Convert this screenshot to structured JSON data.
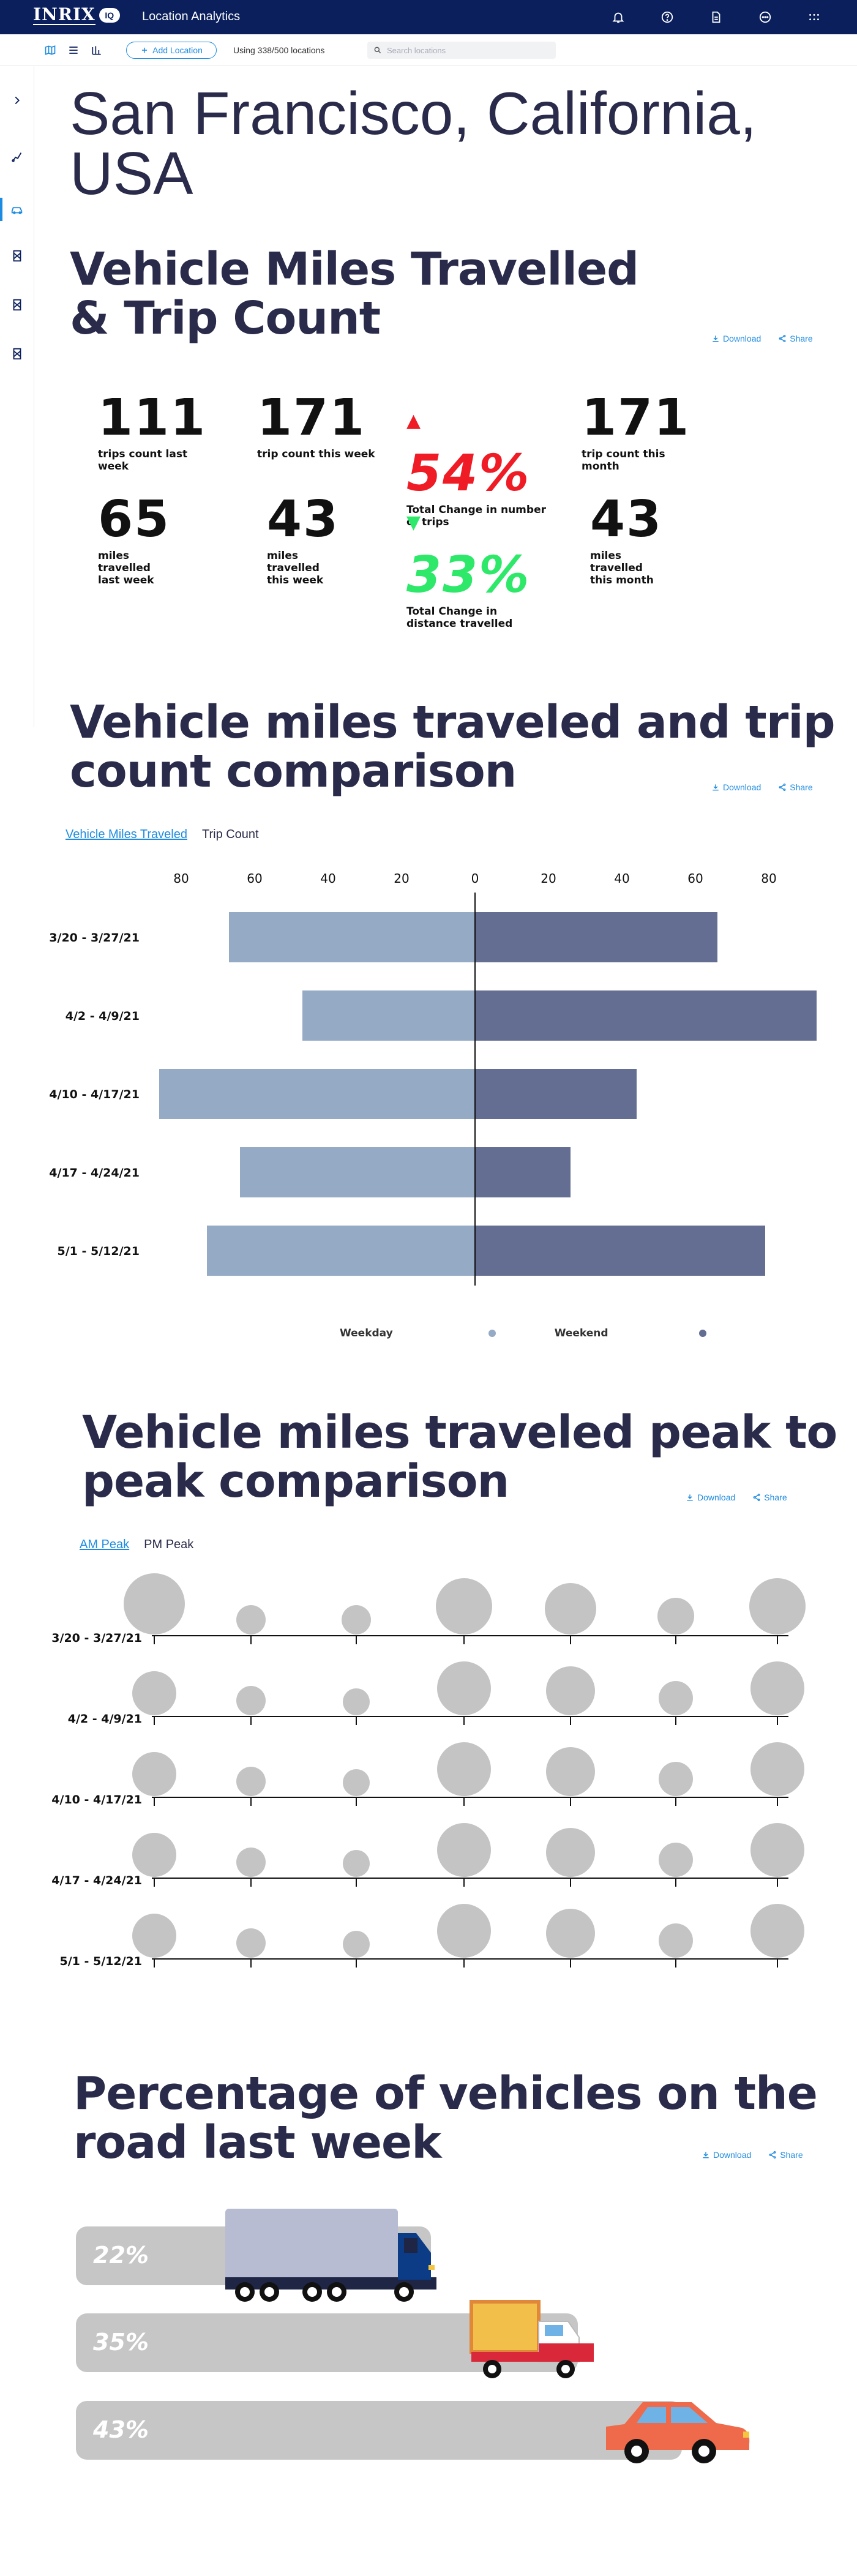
{
  "app": {
    "logo_text": "INRIX",
    "logo_badge": "IQ",
    "title": "Location Analytics"
  },
  "header_icons": [
    "bell-icon",
    "help-icon",
    "document-icon",
    "more-circle-icon",
    "apps-grid-icon"
  ],
  "toolbar": {
    "add_location_label": "Add Location",
    "usage_text": "Using 338/500 locations",
    "search_placeholder": "Search locations"
  },
  "page": {
    "title": "San Francisco, California, USA"
  },
  "actions": {
    "download_label": "Download",
    "share_label": "Share"
  },
  "vmt_section": {
    "title_line1": "Vehicle Miles Travelled",
    "title_line2": "& Trip Count",
    "metrics": [
      {
        "value": "111",
        "label": "trips count last week"
      },
      {
        "value": "171",
        "label": "trip count this week"
      },
      {
        "value": "54%",
        "label": "Total Change in number of trips",
        "trend": "up"
      },
      {
        "value": "171",
        "label": "trip count this month"
      },
      {
        "value": "65",
        "label": "miles travelled last week"
      },
      {
        "value": "43",
        "label": "miles travelled this week"
      },
      {
        "value": "33%",
        "label": "Total Change in distance travelled",
        "trend": "down"
      },
      {
        "value": "43",
        "label": "miles travelled this month"
      }
    ]
  },
  "comparison_section": {
    "title_line1": "Vehicle miles traveled and trip",
    "title_line2": "count comparison",
    "tabs": [
      "Vehicle Miles Traveled",
      "Trip Count"
    ],
    "legend": [
      {
        "label": "Weekday",
        "color": "#95aac4"
      },
      {
        "label": "Weekend",
        "color": "#646e92"
      }
    ]
  },
  "chart_data": [
    {
      "type": "bar",
      "orientation": "horizontal-diverging",
      "categories": [
        "3/20 - 3/27/21",
        "4/2 - 4/9/21",
        "4/10 - 4/17/21",
        "4/17 - 4/24/21",
        "5/1 - 5/12/21"
      ],
      "series": [
        {
          "name": "Weekday",
          "values": [
            67,
            47,
            86,
            64,
            73
          ],
          "color": "#95aac4"
        },
        {
          "name": "Weekend",
          "values": [
            66,
            93,
            44,
            26,
            79
          ],
          "color": "#646e92"
        }
      ],
      "xticks_left": [
        80,
        60,
        40,
        20
      ],
      "xticks_right": [
        0,
        20,
        40,
        60,
        80
      ],
      "xlim": [
        -90,
        95
      ]
    },
    {
      "type": "scatter",
      "subtype": "bubble",
      "categories": [
        "3/20 - 3/27/21",
        "4/2 - 4/9/21",
        "4/10 - 4/17/21",
        "4/17 - 4/24/21",
        "5/1 - 5/12/21"
      ],
      "points_per_row": 7,
      "sizes": [
        [
          50,
          24,
          24,
          46,
          42,
          30,
          46
        ],
        [
          36,
          24,
          22,
          44,
          40,
          28,
          44
        ],
        [
          36,
          24,
          22,
          44,
          40,
          28,
          44
        ],
        [
          36,
          24,
          22,
          44,
          40,
          28,
          44
        ],
        [
          36,
          24,
          22,
          44,
          40,
          28,
          44
        ]
      ],
      "color": "#c4c4c4"
    }
  ],
  "peak_section": {
    "title_line1": "Vehicle miles traveled peak to",
    "title_line2": "peak comparison",
    "tabs": [
      "AM Peak",
      "PM Peak"
    ]
  },
  "vehicles_section": {
    "title_line1": "Percentage of vehicles on the",
    "title_line2": "road last week",
    "items": [
      {
        "label": "22%",
        "vehicle": "truck-icon",
        "share": 22
      },
      {
        "label": "35%",
        "vehicle": "van-icon",
        "share": 35
      },
      {
        "label": "43%",
        "vehicle": "car-icon",
        "share": 43
      }
    ]
  }
}
